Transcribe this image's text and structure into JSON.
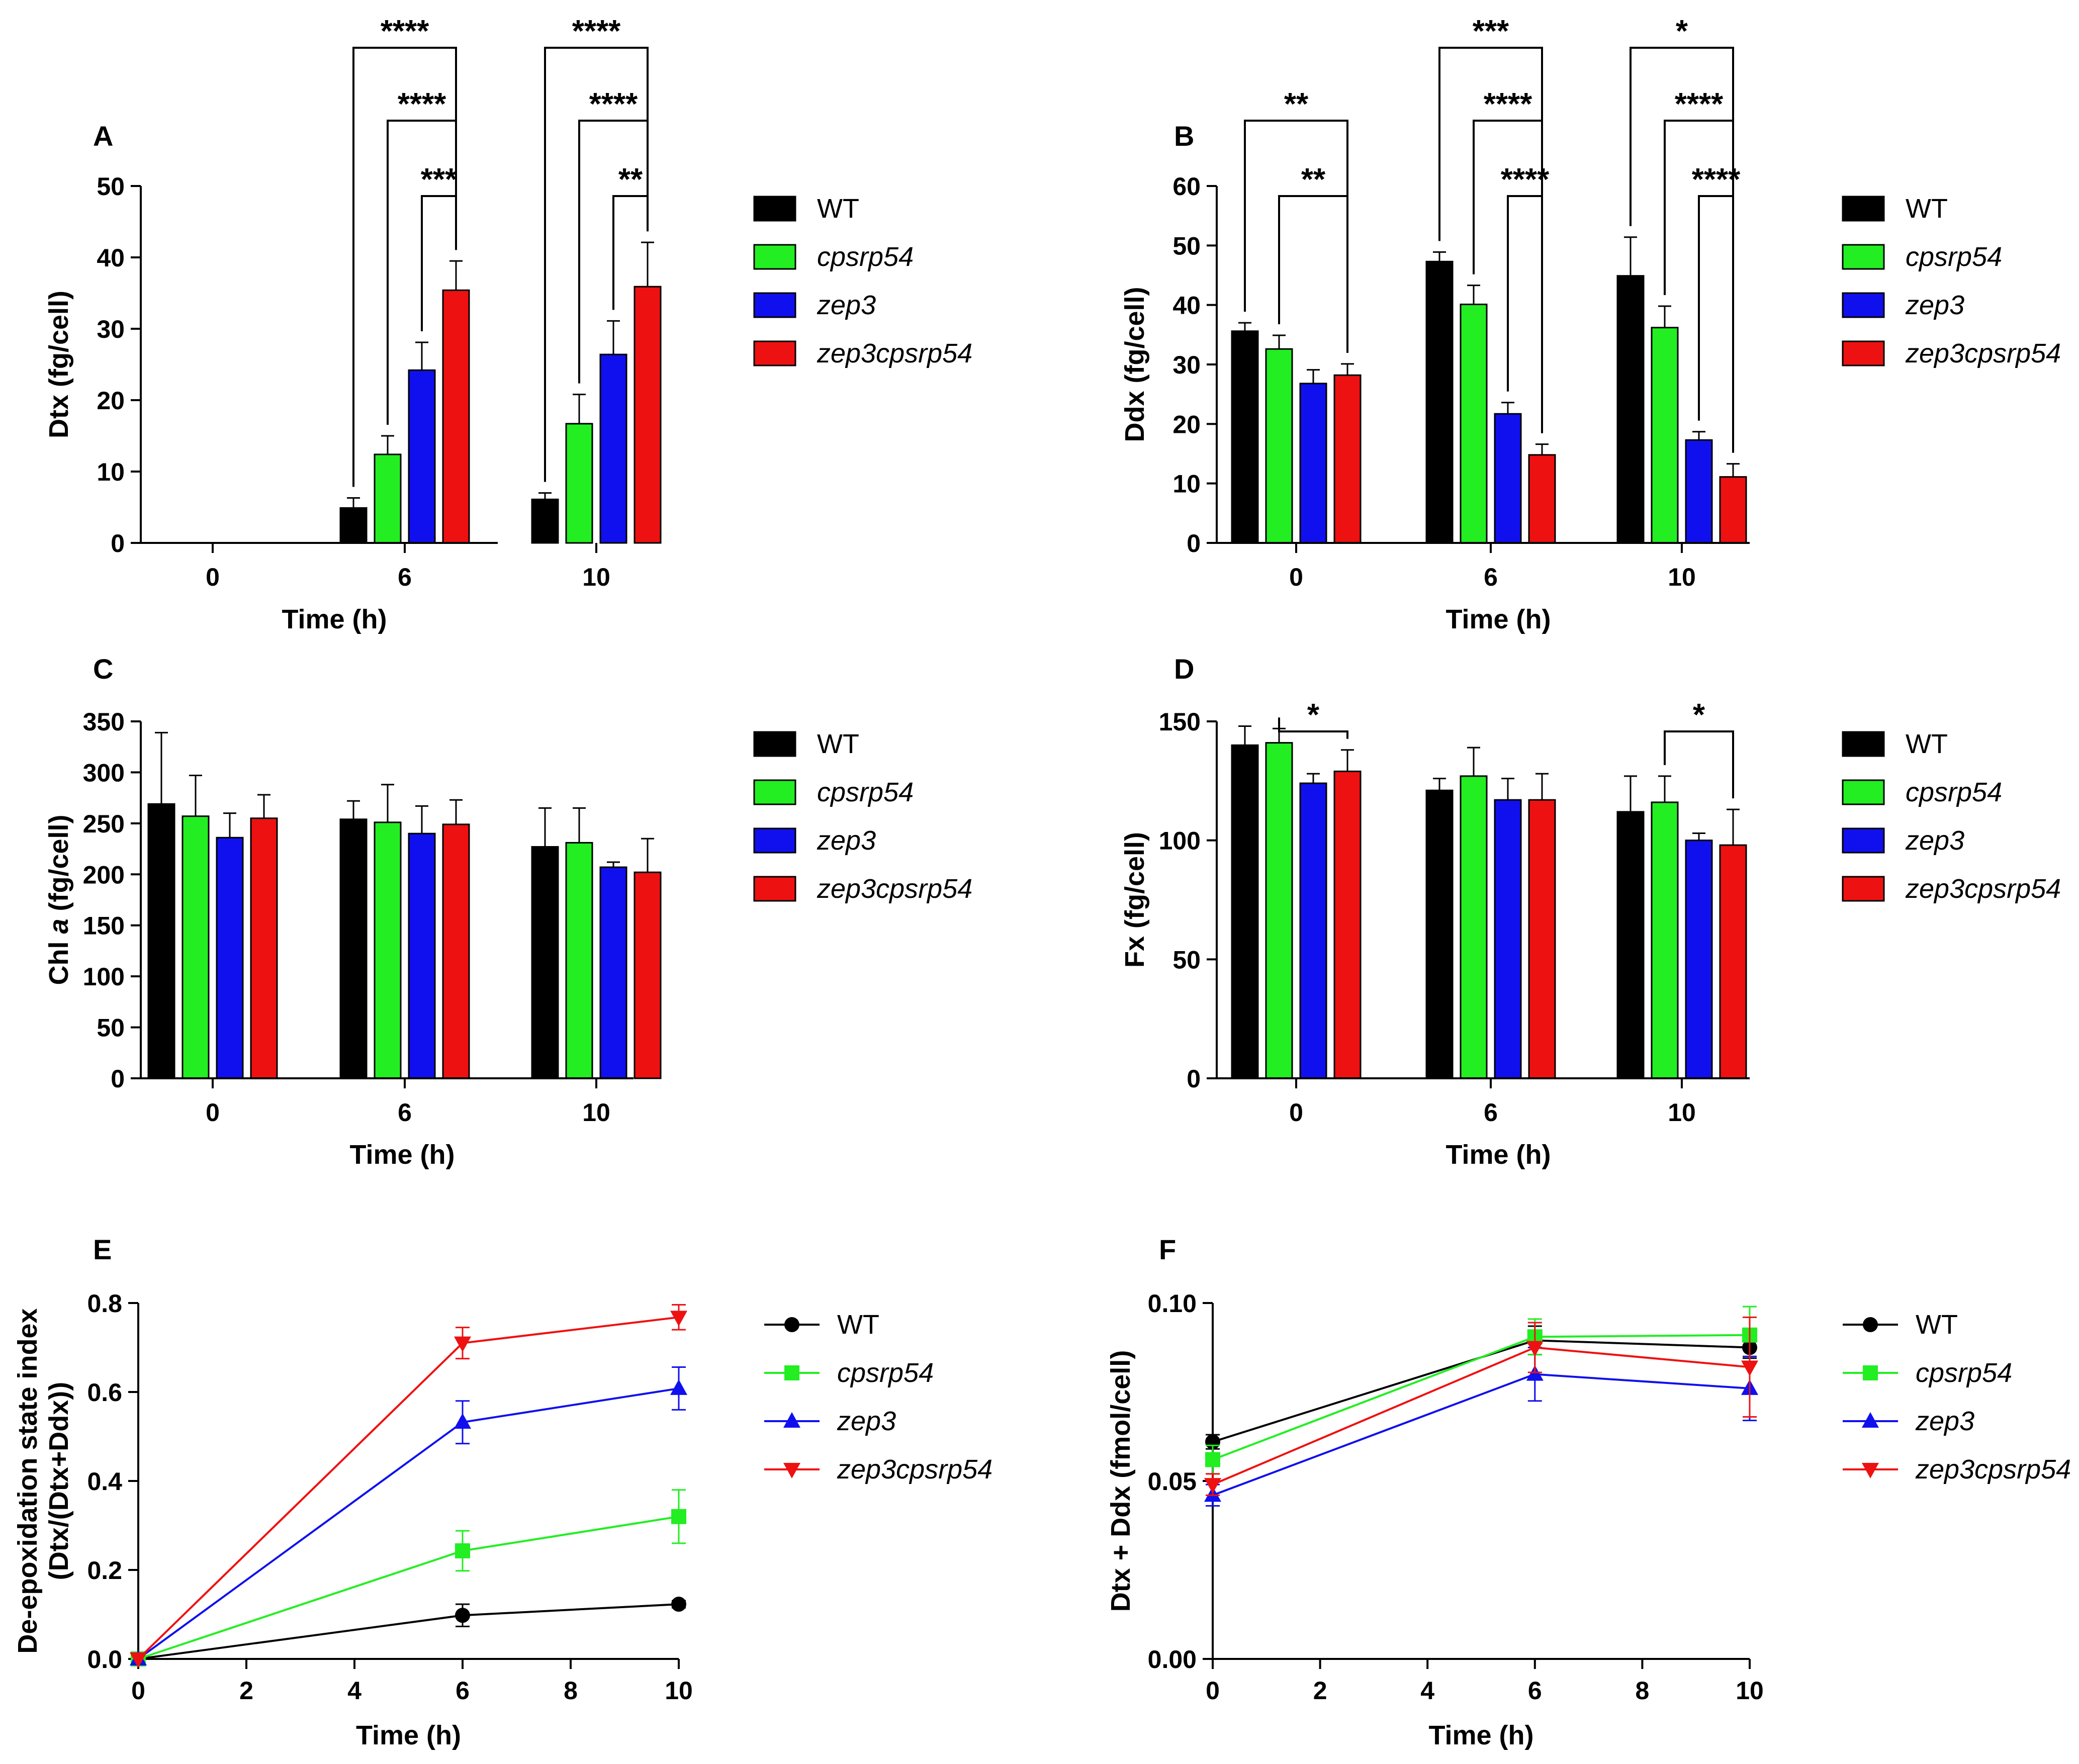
{
  "legend": [
    {
      "label": "WT",
      "italic": false,
      "color": "#000000",
      "marker": "circle"
    },
    {
      "label": "cpsrp54",
      "italic": true,
      "color": "#22ee22",
      "marker": "square"
    },
    {
      "label": "zep3",
      "italic": true,
      "color": "#1010ee",
      "marker": "triangle-up"
    },
    {
      "label": "zep3cpsrp54",
      "italic": true,
      "color": "#ee1111",
      "marker": "triangle-down"
    }
  ],
  "chart_data": [
    {
      "panel": "A",
      "type": "bar",
      "ylabel": "Dtx (fg/cell)",
      "ylabel_parts": [
        {
          "t": "Dtx (fg/cell)",
          "i": false
        }
      ],
      "xlabel": "Time (h)",
      "categories": [
        "0",
        "6",
        "10"
      ],
      "ylim": [
        0,
        50
      ],
      "yticks": [
        0,
        10,
        20,
        30,
        40,
        50
      ],
      "series": [
        {
          "name": "WT",
          "values": [
            0,
            4.9,
            6.1
          ],
          "errors": [
            0,
            1.4,
            0.9
          ]
        },
        {
          "name": "cpsrp54",
          "values": [
            0,
            12.4,
            16.7
          ],
          "errors": [
            0,
            2.6,
            4.1
          ]
        },
        {
          "name": "zep3",
          "values": [
            0,
            24.2,
            26.4
          ],
          "errors": [
            0,
            3.9,
            4.7
          ]
        },
        {
          "name": "zep3cpsrp54",
          "values": [
            0,
            35.4,
            35.9
          ],
          "errors": [
            0,
            4.1,
            6.2
          ]
        }
      ],
      "significance": [
        {
          "group": 1,
          "from": 0,
          "to": 3,
          "label": "****",
          "level": 3
        },
        {
          "group": 1,
          "from": 1,
          "to": 3,
          "label": "****",
          "level": 2
        },
        {
          "group": 1,
          "from": 2,
          "to": 3,
          "label": "***",
          "level": 1
        },
        {
          "group": 2,
          "from": 0,
          "to": 3,
          "label": "****",
          "level": 3
        },
        {
          "group": 2,
          "from": 1,
          "to": 3,
          "label": "****",
          "level": 2
        },
        {
          "group": 2,
          "from": 2,
          "to": 3,
          "label": "**",
          "level": 1
        }
      ]
    },
    {
      "panel": "B",
      "type": "bar",
      "ylabel": "Ddx (fg/cell)",
      "ylabel_parts": [
        {
          "t": "Ddx (fg/cell)",
          "i": false
        }
      ],
      "xlabel": "Time (h)",
      "categories": [
        "0",
        "6",
        "10"
      ],
      "ylim": [
        0,
        60
      ],
      "yticks": [
        0,
        10,
        20,
        30,
        40,
        50,
        60
      ],
      "series": [
        {
          "name": "WT",
          "values": [
            35.6,
            47.3,
            44.9
          ],
          "errors": [
            1.4,
            1.6,
            6.5
          ]
        },
        {
          "name": "cpsrp54",
          "values": [
            32.6,
            40.1,
            36.2
          ],
          "errors": [
            2.3,
            3.2,
            3.6
          ]
        },
        {
          "name": "zep3",
          "values": [
            26.8,
            21.7,
            17.3
          ],
          "errors": [
            2.3,
            1.9,
            1.4
          ]
        },
        {
          "name": "zep3cpsrp54",
          "values": [
            28.2,
            14.8,
            11.1
          ],
          "errors": [
            1.9,
            1.8,
            2.2
          ]
        }
      ],
      "significance": [
        {
          "group": 0,
          "from": 0,
          "to": 3,
          "label": "**",
          "level": 2
        },
        {
          "group": 0,
          "from": 1,
          "to": 3,
          "label": "**",
          "level": 1
        },
        {
          "group": 1,
          "from": 0,
          "to": 3,
          "label": "***",
          "level": 3
        },
        {
          "group": 1,
          "from": 1,
          "to": 3,
          "label": "****",
          "level": 2
        },
        {
          "group": 1,
          "from": 2,
          "to": 3,
          "label": "****",
          "level": 1
        },
        {
          "group": 2,
          "from": 0,
          "to": 3,
          "label": "*",
          "level": 3
        },
        {
          "group": 2,
          "from": 1,
          "to": 3,
          "label": "****",
          "level": 2
        },
        {
          "group": 2,
          "from": 2,
          "to": 3,
          "label": "****",
          "level": 1
        }
      ]
    },
    {
      "panel": "C",
      "type": "bar",
      "ylabel": "Chl a (fg/cell)",
      "ylabel_parts": [
        {
          "t": "Chl ",
          "i": false
        },
        {
          "t": "a",
          "i": true
        },
        {
          "t": " (fg/cell)",
          "i": false
        }
      ],
      "xlabel": "Time (h)",
      "categories": [
        "0",
        "6",
        "10"
      ],
      "ylim": [
        0,
        350
      ],
      "yticks": [
        0,
        50,
        100,
        150,
        200,
        250,
        300,
        350
      ],
      "series": [
        {
          "name": "WT",
          "values": [
            269,
            254,
            227
          ],
          "errors": [
            70,
            18,
            38
          ]
        },
        {
          "name": "cpsrp54",
          "values": [
            257,
            251,
            231
          ],
          "errors": [
            40,
            37,
            34
          ]
        },
        {
          "name": "zep3",
          "values": [
            236,
            240,
            207
          ],
          "errors": [
            24,
            27,
            5
          ]
        },
        {
          "name": "zep3cpsrp54",
          "values": [
            255,
            249,
            202
          ],
          "errors": [
            23,
            24,
            33
          ]
        }
      ],
      "significance": []
    },
    {
      "panel": "D",
      "type": "bar",
      "ylabel": "Fx (fg/cell)",
      "ylabel_parts": [
        {
          "t": "Fx (fg/cell)",
          "i": false
        }
      ],
      "xlabel": "Time (h)",
      "categories": [
        "0",
        "6",
        "10"
      ],
      "ylim": [
        0,
        150
      ],
      "yticks": [
        0,
        50,
        100,
        150
      ],
      "series": [
        {
          "name": "WT",
          "values": [
            140,
            121,
            112
          ],
          "errors": [
            8,
            5,
            15
          ]
        },
        {
          "name": "cpsrp54",
          "values": [
            141,
            127,
            116
          ],
          "errors": [
            6,
            12,
            11
          ]
        },
        {
          "name": "zep3",
          "values": [
            124,
            117,
            100
          ],
          "errors": [
            4,
            9,
            3
          ]
        },
        {
          "name": "zep3cpsrp54",
          "values": [
            129,
            117,
            98
          ],
          "errors": [
            9,
            11,
            15
          ]
        }
      ],
      "significance": [
        {
          "group": 0,
          "from": 1,
          "to": 3,
          "label": "*",
          "level": 1
        },
        {
          "group": 2,
          "from": 1,
          "to": 3,
          "label": "*",
          "level": 1
        }
      ]
    },
    {
      "panel": "E",
      "type": "line",
      "ylabel_lines": [
        "De-epoxidation state index",
        "(Dtx/(Dtx+Ddx))"
      ],
      "xlabel": "Time (h)",
      "x": [
        0,
        6,
        10
      ],
      "xlim": [
        0,
        10
      ],
      "xticks": [
        0,
        2,
        4,
        6,
        8,
        10
      ],
      "ylim": [
        0,
        0.8
      ],
      "yticks": [
        "0.0",
        "0.2",
        "0.4",
        "0.6",
        "0.8"
      ],
      "series": [
        {
          "name": "WT",
          "values": [
            0,
            0.098,
            0.123
          ],
          "errors": [
            0,
            0.025,
            0.008
          ]
        },
        {
          "name": "cpsrp54",
          "values": [
            0,
            0.243,
            0.32
          ],
          "errors": [
            0,
            0.045,
            0.06
          ]
        },
        {
          "name": "zep3",
          "values": [
            0,
            0.532,
            0.608
          ],
          "errors": [
            0,
            0.048,
            0.048
          ]
        },
        {
          "name": "zep3cpsrp54",
          "values": [
            0,
            0.71,
            0.768
          ],
          "errors": [
            0,
            0.035,
            0.028
          ]
        }
      ]
    },
    {
      "panel": "F",
      "type": "line",
      "ylabel_lines": [
        "Dtx + Ddx (fmol/cell)"
      ],
      "xlabel": "Time (h)",
      "x": [
        0,
        6,
        10
      ],
      "xlim": [
        0,
        10
      ],
      "xticks": [
        0,
        2,
        4,
        6,
        8,
        10
      ],
      "ylim": [
        0,
        0.1
      ],
      "yticks": [
        "0.00",
        "0.05",
        "0.10"
      ],
      "series": [
        {
          "name": "WT",
          "values": [
            0.061,
            0.0895,
            0.0875
          ],
          "errors": [
            0.002,
            0.004,
            0.003
          ]
        },
        {
          "name": "cpsrp54",
          "values": [
            0.056,
            0.0905,
            0.091
          ],
          "errors": [
            0.004,
            0.005,
            0.008
          ]
        },
        {
          "name": "zep3",
          "values": [
            0.046,
            0.08,
            0.076
          ],
          "errors": [
            0.003,
            0.0075,
            0.009
          ]
        },
        {
          "name": "zep3cpsrp54",
          "values": [
            0.049,
            0.0875,
            0.082
          ],
          "errors": [
            0.003,
            0.007,
            0.014
          ]
        }
      ]
    }
  ]
}
